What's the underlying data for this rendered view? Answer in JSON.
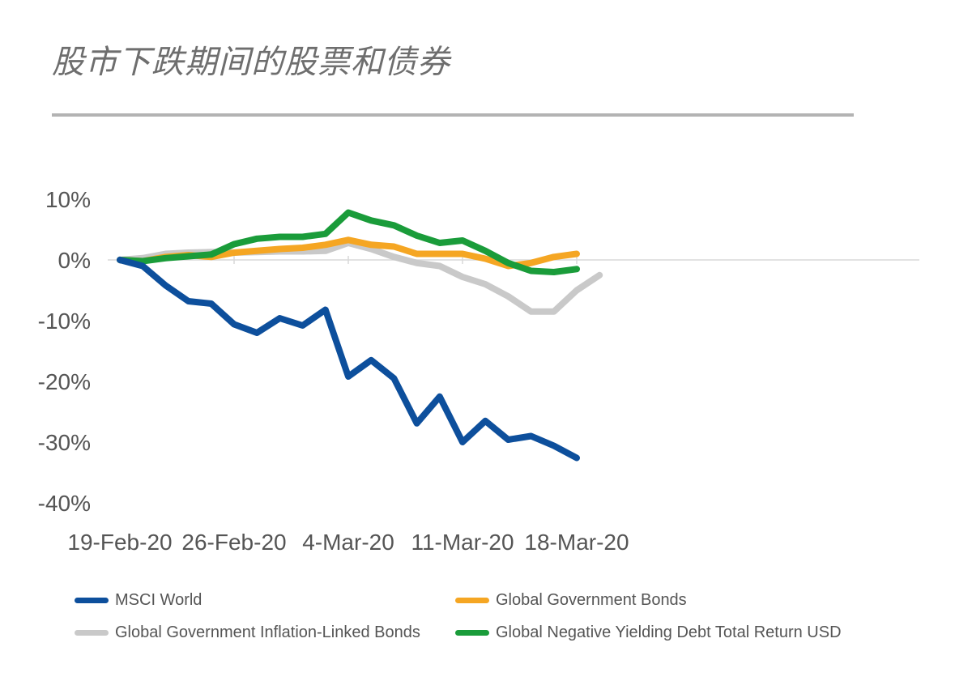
{
  "title": "股市下跌期间的股票和债券",
  "chart_data": {
    "type": "line",
    "title": "股市下跌期间的股票和债券",
    "x": [
      "19-Feb-20",
      "20-Feb-20",
      "21-Feb-20",
      "24-Feb-20",
      "25-Feb-20",
      "26-Feb-20",
      "27-Feb-20",
      "28-Feb-20",
      "2-Mar-20",
      "3-Mar-20",
      "4-Mar-20",
      "5-Mar-20",
      "6-Mar-20",
      "9-Mar-20",
      "10-Mar-20",
      "11-Mar-20",
      "12-Mar-20",
      "13-Mar-20",
      "16-Mar-20",
      "17-Mar-20",
      "18-Mar-20",
      "19-Mar-20",
      "20-Mar-20",
      "23-Mar-20"
    ],
    "x_ticks": [
      "19-Feb-20",
      "26-Feb-20",
      "4-Mar-20",
      "11-Mar-20",
      "18-Mar-20"
    ],
    "y_ticks": [
      "10%",
      "0%",
      "-10%",
      "-20%",
      "-30%",
      "-40%"
    ],
    "ylim": [
      -40,
      10
    ],
    "xlabel": "",
    "ylabel": "",
    "legend_position": "bottom",
    "series": [
      {
        "name": "MSCI World",
        "color": "#0d4f9c",
        "values": [
          0,
          -1.0,
          -4.2,
          -6.8,
          -7.2,
          -10.6,
          -12.0,
          -9.6,
          -10.8,
          -8.2,
          -19.2,
          -16.5,
          -19.5,
          -26.9,
          -22.5,
          -30.0,
          -26.5,
          -29.6,
          -29.0,
          -30.6,
          -32.6,
          null,
          null,
          null
        ]
      },
      {
        "name": "Global Government Bonds",
        "color": "#f5a623",
        "values": [
          0,
          -0.2,
          0.5,
          0.8,
          0.5,
          1.2,
          1.5,
          1.8,
          2.0,
          2.5,
          3.3,
          2.5,
          2.2,
          1.0,
          1.0,
          1.0,
          0.2,
          -1.0,
          -0.5,
          0.5,
          1.0,
          null,
          null,
          null
        ]
      },
      {
        "name": "Global Government Inflation-Linked Bonds",
        "color": "#c9c9c9",
        "values": [
          0,
          0.3,
          1.0,
          1.2,
          1.3,
          1.2,
          1.3,
          1.4,
          1.4,
          1.5,
          2.8,
          1.8,
          0.5,
          -0.5,
          -1.0,
          -2.8,
          -4.0,
          -6.0,
          -8.5,
          -8.5,
          -5.0,
          -2.5,
          null,
          null
        ]
      },
      {
        "name": "Global Negative Yielding Debt Total Return USD",
        "color": "#1a9c3a",
        "values": [
          0,
          -0.2,
          0.3,
          0.6,
          0.9,
          2.6,
          3.5,
          3.8,
          3.8,
          4.3,
          7.8,
          6.5,
          5.7,
          4.0,
          2.8,
          3.2,
          1.5,
          -0.5,
          -1.8,
          -2.0,
          -1.5,
          null,
          null,
          null
        ]
      }
    ]
  }
}
